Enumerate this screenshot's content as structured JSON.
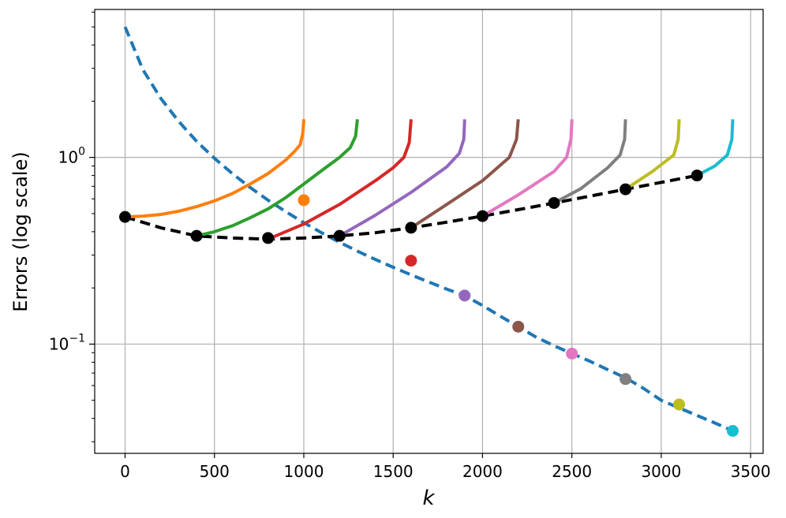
{
  "chart_data": {
    "type": "line",
    "title": "",
    "xlabel": "k",
    "ylabel": "Errors (log scale)",
    "xlim": [
      -170,
      3570
    ],
    "ylim": [
      0.026,
      6.2
    ],
    "yscale": "log",
    "grid": true,
    "x_ticks": [
      0,
      500,
      1000,
      1500,
      2000,
      2500,
      3000,
      3500
    ],
    "x_tick_labels": [
      "0",
      "500",
      "1000",
      "1500",
      "2000",
      "2500",
      "3000",
      "3500"
    ],
    "y_ticks": [
      {
        "value": 1.0,
        "base": "10",
        "exp": "0"
      },
      {
        "value": 0.1,
        "base": "10",
        "exp": "−1"
      }
    ],
    "series": [
      {
        "color": "#1f77b4",
        "dash": true,
        "points": [
          [
            0,
            5.0
          ],
          [
            100,
            2.95
          ],
          [
            200,
            2.07
          ],
          [
            300,
            1.56
          ],
          [
            400,
            1.22
          ],
          [
            500,
            0.99
          ],
          [
            600,
            0.82
          ],
          [
            700,
            0.69
          ],
          [
            800,
            0.59
          ],
          [
            900,
            0.512
          ],
          [
            1000,
            0.447
          ],
          [
            1100,
            0.395
          ],
          [
            1200,
            0.351
          ],
          [
            1300,
            0.315
          ],
          [
            1400,
            0.284
          ],
          [
            1500,
            0.258
          ],
          [
            1600,
            0.235
          ],
          [
            1700,
            0.215
          ],
          [
            1800,
            0.197
          ],
          [
            1900,
            0.182
          ],
          [
            2000,
            0.161
          ],
          [
            2100,
            0.141
          ],
          [
            2200,
            0.124
          ],
          [
            2300,
            0.109
          ],
          [
            2400,
            0.098
          ],
          [
            2500,
            0.089
          ],
          [
            2600,
            0.081
          ],
          [
            2700,
            0.073
          ],
          [
            2800,
            0.066
          ],
          [
            2900,
            0.058
          ],
          [
            3000,
            0.05
          ],
          [
            3100,
            0.0455
          ],
          [
            3200,
            0.0415
          ],
          [
            3300,
            0.0378
          ],
          [
            3400,
            0.0343
          ]
        ]
      },
      {
        "color": "#000000",
        "dash": true,
        "points": [
          [
            0,
            0.48
          ],
          [
            200,
            0.42
          ],
          [
            400,
            0.38
          ],
          [
            600,
            0.37
          ],
          [
            800,
            0.365
          ],
          [
            1000,
            0.37
          ],
          [
            1200,
            0.38
          ],
          [
            1400,
            0.395
          ],
          [
            1600,
            0.42
          ],
          [
            1800,
            0.45
          ],
          [
            2000,
            0.485
          ],
          [
            2200,
            0.525
          ],
          [
            2400,
            0.57
          ],
          [
            2600,
            0.62
          ],
          [
            2800,
            0.675
          ],
          [
            3000,
            0.735
          ],
          [
            3200,
            0.8
          ]
        ]
      },
      {
        "color": "#ff7f0e",
        "points": [
          [
            0,
            0.48
          ],
          [
            100,
            0.485
          ],
          [
            200,
            0.495
          ],
          [
            300,
            0.515
          ],
          [
            400,
            0.545
          ],
          [
            500,
            0.585
          ],
          [
            600,
            0.64
          ],
          [
            700,
            0.72
          ],
          [
            800,
            0.82
          ],
          [
            900,
            0.97
          ],
          [
            950,
            1.08
          ],
          [
            980,
            1.17
          ],
          [
            995,
            1.35
          ],
          [
            1000,
            1.6
          ]
        ]
      },
      {
        "color": "#2ca02c",
        "points": [
          [
            400,
            0.38
          ],
          [
            500,
            0.4
          ],
          [
            600,
            0.43
          ],
          [
            700,
            0.475
          ],
          [
            800,
            0.53
          ],
          [
            900,
            0.61
          ],
          [
            1000,
            0.72
          ],
          [
            1100,
            0.85
          ],
          [
            1200,
            1.0
          ],
          [
            1260,
            1.13
          ],
          [
            1290,
            1.3
          ],
          [
            1300,
            1.6
          ]
        ]
      },
      {
        "color": "#d62728",
        "points": [
          [
            800,
            0.365
          ],
          [
            1000,
            0.44
          ],
          [
            1200,
            0.56
          ],
          [
            1400,
            0.75
          ],
          [
            1500,
            0.88
          ],
          [
            1560,
            1.0
          ],
          [
            1590,
            1.2
          ],
          [
            1600,
            1.6
          ]
        ]
      },
      {
        "color": "#9467bd",
        "points": [
          [
            1200,
            0.38
          ],
          [
            1400,
            0.49
          ],
          [
            1600,
            0.65
          ],
          [
            1800,
            0.89
          ],
          [
            1870,
            1.05
          ],
          [
            1895,
            1.25
          ],
          [
            1900,
            1.6
          ]
        ]
      },
      {
        "color": "#8c564b",
        "points": [
          [
            1600,
            0.42
          ],
          [
            1800,
            0.56
          ],
          [
            2000,
            0.75
          ],
          [
            2150,
            1.0
          ],
          [
            2190,
            1.25
          ],
          [
            2200,
            1.6
          ]
        ]
      },
      {
        "color": "#e377c2",
        "points": [
          [
            2000,
            0.485
          ],
          [
            2200,
            0.63
          ],
          [
            2400,
            0.84
          ],
          [
            2470,
            1.0
          ],
          [
            2495,
            1.25
          ],
          [
            2500,
            1.6
          ]
        ]
      },
      {
        "color": "#7f7f7f",
        "points": [
          [
            2400,
            0.57
          ],
          [
            2550,
            0.68
          ],
          [
            2700,
            0.88
          ],
          [
            2770,
            1.03
          ],
          [
            2795,
            1.25
          ],
          [
            2800,
            1.6
          ]
        ]
      },
      {
        "color": "#bcbd22",
        "points": [
          [
            2800,
            0.675
          ],
          [
            2950,
            0.84
          ],
          [
            3070,
            1.03
          ],
          [
            3095,
            1.25
          ],
          [
            3100,
            1.6
          ]
        ]
      },
      {
        "color": "#17becf",
        "points": [
          [
            3200,
            0.8
          ],
          [
            3300,
            0.9
          ],
          [
            3370,
            1.03
          ],
          [
            3395,
            1.25
          ],
          [
            3400,
            1.6
          ]
        ]
      }
    ],
    "markers": [
      {
        "x": 1000,
        "y": 0.59,
        "color": "#ff7f0e"
      },
      {
        "x": 1600,
        "y": 0.28,
        "color": "#d62728"
      },
      {
        "x": 1900,
        "y": 0.182,
        "color": "#9467bd"
      },
      {
        "x": 2200,
        "y": 0.124,
        "color": "#8c564b"
      },
      {
        "x": 2500,
        "y": 0.089,
        "color": "#e377c2"
      },
      {
        "x": 2800,
        "y": 0.065,
        "color": "#7f7f7f"
      },
      {
        "x": 3100,
        "y": 0.0475,
        "color": "#bcbd22"
      },
      {
        "x": 3400,
        "y": 0.0343,
        "color": "#17becf"
      },
      {
        "x": 0,
        "y": 0.48,
        "color": "#000000"
      },
      {
        "x": 400,
        "y": 0.38,
        "color": "#000000"
      },
      {
        "x": 800,
        "y": 0.37,
        "color": "#000000"
      },
      {
        "x": 1200,
        "y": 0.38,
        "color": "#000000"
      },
      {
        "x": 1600,
        "y": 0.42,
        "color": "#000000"
      },
      {
        "x": 2000,
        "y": 0.485,
        "color": "#000000"
      },
      {
        "x": 2400,
        "y": 0.57,
        "color": "#000000"
      },
      {
        "x": 2800,
        "y": 0.675,
        "color": "#000000"
      },
      {
        "x": 3200,
        "y": 0.8,
        "color": "#000000"
      }
    ]
  }
}
